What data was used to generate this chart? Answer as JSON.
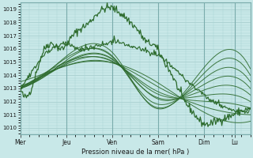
{
  "bg_color": "#c8e8e8",
  "grid_color": "#a8d0d0",
  "line_color": "#2d6b2d",
  "xlabel_text": "Pression niveau de la mer( hPa )",
  "ylim": [
    1009.5,
    1019.5
  ],
  "yticks": [
    1010,
    1011,
    1012,
    1013,
    1014,
    1015,
    1016,
    1017,
    1018,
    1019
  ],
  "day_labels": [
    "Mer",
    "Jeu",
    "Ven",
    "Sam",
    "Dim",
    "Lu"
  ],
  "day_positions": [
    0,
    0.2,
    0.4,
    0.6,
    0.8,
    0.933
  ],
  "total_points": 300,
  "figsize": [
    3.2,
    2.0
  ],
  "dpi": 100
}
